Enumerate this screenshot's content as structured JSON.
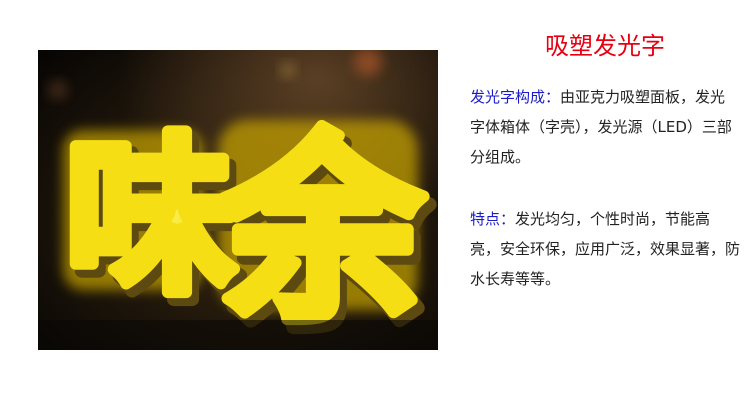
{
  "title": "吸塑发光字",
  "photo": {
    "sign_chars": [
      "味",
      "余"
    ]
  },
  "composition": {
    "label": "发光字构成：",
    "text": "由亚克力吸塑面板，发光字体箱体（字壳），发光源（LED）三部分组成。"
  },
  "features": {
    "label": "特点：",
    "text": "发光均匀，个性时尚，节能高亮，安全环保，应用广泛，效果显著，防水长寿等等。"
  },
  "colors": {
    "title": "#e60012",
    "label": "#1a1ac8",
    "body_text": "#222222",
    "letter_face": "#f7e21a"
  }
}
